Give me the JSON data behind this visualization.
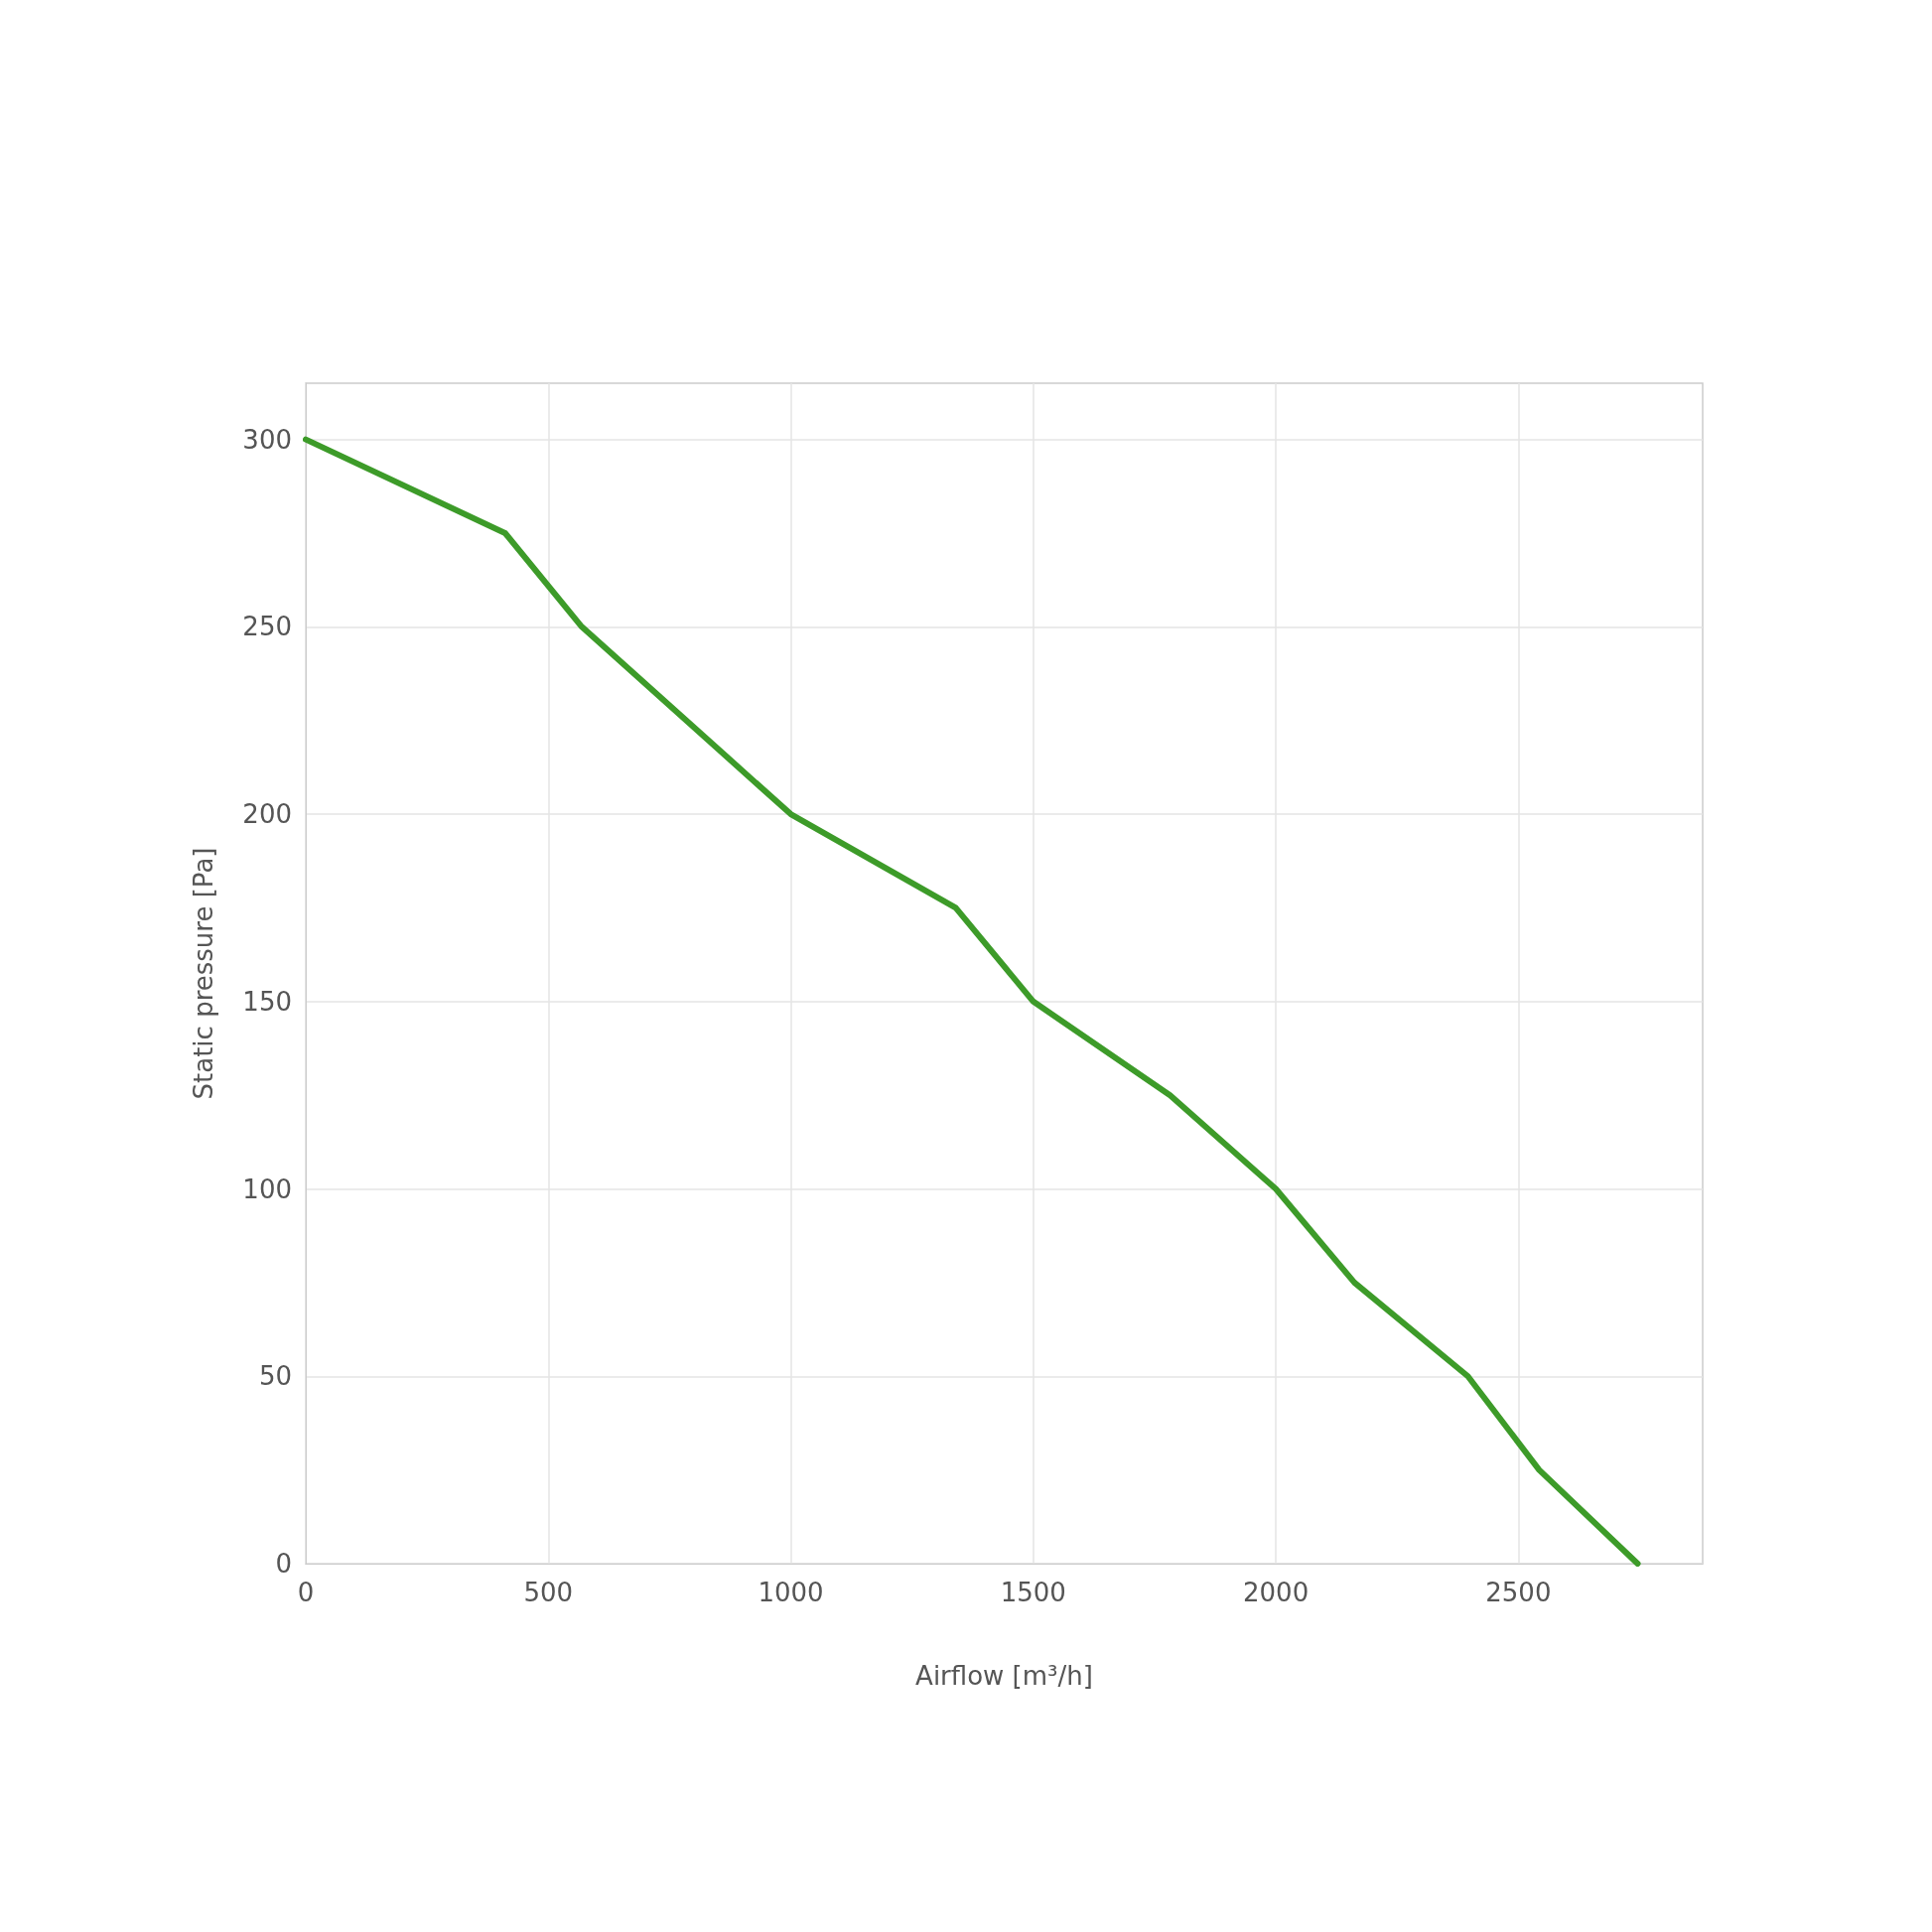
{
  "chart_data": {
    "type": "line",
    "xlabel": "Airflow [m³/h]",
    "ylabel": "Static pressure [Pa]",
    "x": [
      0,
      411,
      569,
      1000,
      1340,
      1500,
      1782,
      2000,
      2162,
      2396,
      2543,
      2746
    ],
    "series": [
      {
        "color": "#3d9b29",
        "values": [
          300,
          275,
          250,
          200,
          175,
          150,
          125,
          100,
          75,
          50,
          25,
          0
        ]
      }
    ],
    "xlim": [
      0,
      2880
    ],
    "xticks": [
      0,
      500,
      1000,
      1500,
      2000,
      2500
    ],
    "ylim": [
      0,
      315
    ],
    "yticks": [
      0,
      50,
      100,
      150,
      200,
      250,
      300
    ],
    "grid": true,
    "marker": "none",
    "line_style": "solid"
  }
}
